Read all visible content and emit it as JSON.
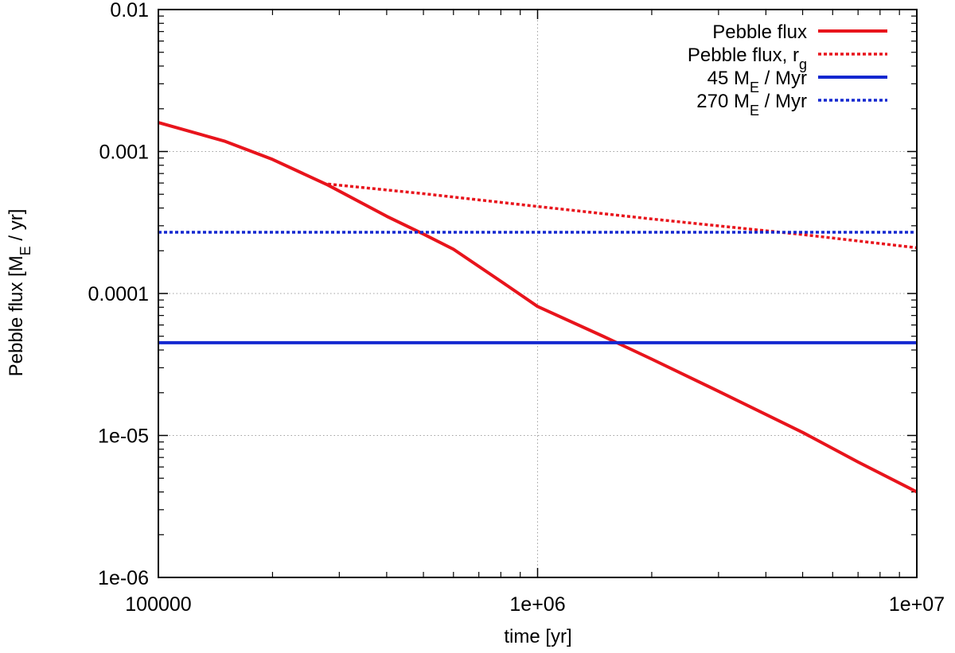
{
  "chart_data": {
    "type": "line",
    "title": "",
    "xlabel": "time [yr]",
    "ylabel": {
      "text": "Pebble flux [M",
      "sub": "E",
      "tail": " / yr]"
    },
    "xscale": "log",
    "yscale": "log",
    "xlim": [
      100000,
      10000000
    ],
    "ylim": [
      1e-06,
      0.01
    ],
    "grid": true,
    "legend_position": "top-right",
    "x_ticks": [
      {
        "value": 100000,
        "label": "100000"
      },
      {
        "value": 1000000,
        "label": "1e+06"
      },
      {
        "value": 10000000,
        "label": "1e+07"
      }
    ],
    "y_ticks": [
      {
        "value": 1e-06,
        "label": "1e-06"
      },
      {
        "value": 1e-05,
        "label": "1e-05"
      },
      {
        "value": 0.0001,
        "label": "0.0001"
      },
      {
        "value": 0.001,
        "label": "0.001"
      },
      {
        "value": 0.01,
        "label": "0.01"
      }
    ],
    "series": [
      {
        "name": "Pebble flux",
        "legend": {
          "text": "Pebble flux",
          "sub": ""
        },
        "color": "#e8141c",
        "dash": "solid",
        "x": [
          100000,
          150000,
          200000,
          280000,
          400000,
          500000,
          600000,
          800000,
          1000000,
          1500000,
          2000000,
          3000000,
          5000000,
          7000000,
          10000000
        ],
        "y": [
          0.0016,
          0.00118,
          0.00088,
          0.00058,
          0.00035,
          0.000262,
          0.000205,
          0.000122,
          8.1e-05,
          4.95e-05,
          3.45e-05,
          2.05e-05,
          1.05e-05,
          6.5e-06,
          4e-06
        ]
      },
      {
        "name": "Pebble flux, r_g",
        "legend": {
          "text": "Pebble flux, r",
          "sub": "g"
        },
        "color": "#e8141c",
        "dash": "dotted",
        "x": [
          280000,
          500000,
          1000000,
          2000000,
          5000000,
          10000000
        ],
        "y": [
          0.00059,
          0.000505,
          0.00041,
          0.000335,
          0.00026,
          0.00021
        ]
      },
      {
        "name": "45 M_E / Myr",
        "legend": {
          "text": "45 M",
          "sub": "E",
          "tail": " / Myr"
        },
        "color": "#1428d0",
        "dash": "solid",
        "x": [
          100000,
          10000000
        ],
        "y": [
          4.5e-05,
          4.5e-05
        ]
      },
      {
        "name": "270 M_E / Myr",
        "legend": {
          "text": "270 M",
          "sub": "E",
          "tail": " / Myr"
        },
        "color": "#1428d0",
        "dash": "dotted",
        "x": [
          100000,
          10000000
        ],
        "y": [
          0.00027,
          0.00027
        ]
      }
    ]
  }
}
